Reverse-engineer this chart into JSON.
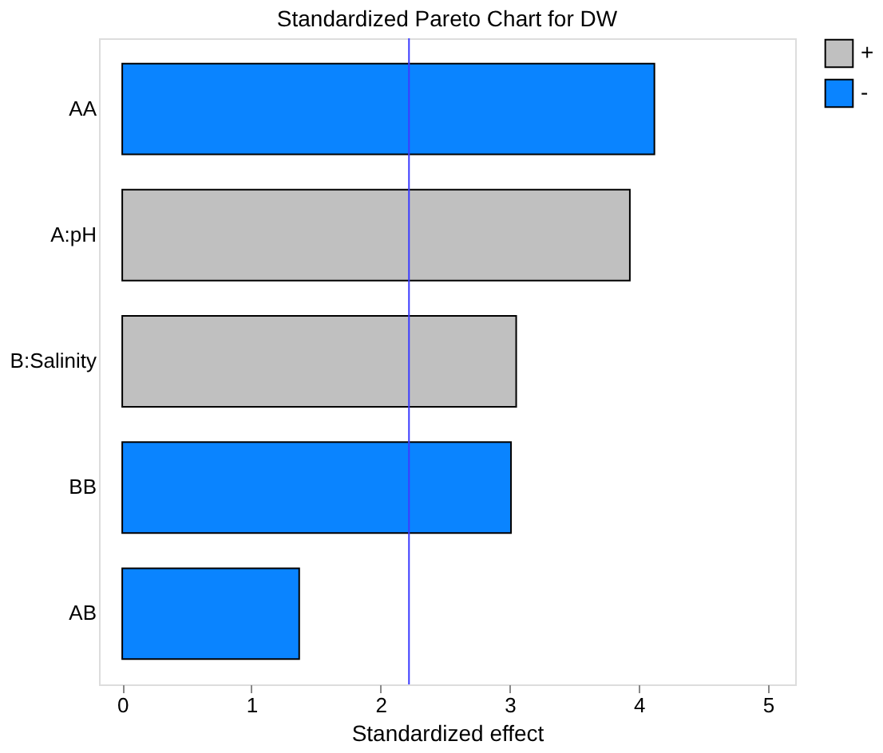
{
  "chart_data": {
    "type": "bar",
    "title": "Standardized Pareto Chart for DW",
    "xlabel": "Standardized effect",
    "orientation": "horizontal",
    "categories": [
      "AA",
      "A:pH",
      "B:Salinity",
      "BB",
      "AB"
    ],
    "series": [
      {
        "name": "+",
        "color": "#c0c0c0",
        "values": [
          null,
          3.93,
          3.05,
          null,
          null
        ]
      },
      {
        "name": "-",
        "color": "#0a84ff",
        "values": [
          4.12,
          null,
          null,
          3.01,
          1.37
        ]
      }
    ],
    "xlim": [
      -0.18,
      5.21
    ],
    "xticks": [
      0,
      1,
      2,
      3,
      4,
      5
    ],
    "ref_lines": [
      {
        "axis": "x",
        "value": 2.22,
        "color": "#3c3cff"
      }
    ],
    "grid": false,
    "legend": "top right"
  }
}
